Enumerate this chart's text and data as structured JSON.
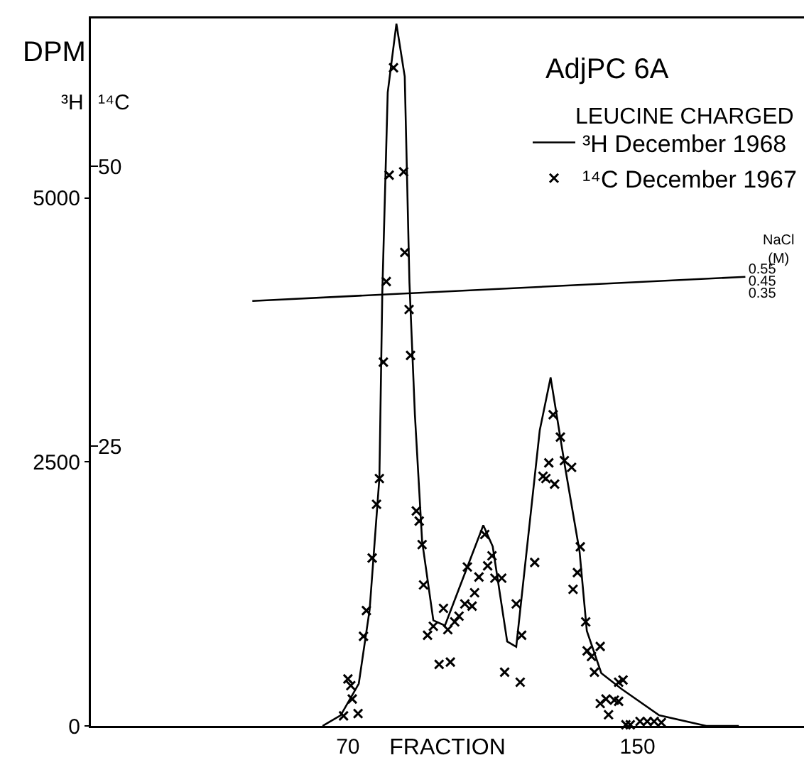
{
  "chart_data": {
    "type": "line",
    "title": "AdjPC 6A",
    "subtitle": "LEUCINE CHARGED",
    "xlabel": "FRACTION",
    "ylabel": "³H",
    "y2label": "¹⁴C",
    "y3label": "NaCl (M)",
    "annotations": [
      "DPM"
    ],
    "xlim": [
      -1,
      196
    ],
    "xticks": [
      70,
      150
    ],
    "ylim": [
      0,
      6700
    ],
    "yticks": [
      0,
      2500,
      5000
    ],
    "y2lim": [
      0,
      63.2
    ],
    "y2ticks": [
      25,
      50
    ],
    "y3lim": [
      -3.24,
      2.62
    ],
    "y3ticks": [
      0.35,
      0.45,
      0.55
    ],
    "grid": false,
    "legend": "top right",
    "series": [
      {
        "name": "³H December 1968",
        "color": "#000000",
        "line_style": "solid",
        "marker": "none",
        "x": [
          63,
          68,
          73,
          76,
          78.7,
          79.5,
          81,
          83.4,
          85.7,
          87,
          88.5,
          90.5,
          93.6,
          96.8,
          100.7,
          107.4,
          110,
          114,
          116.5,
          123,
          126,
          130,
          134,
          136,
          140,
          145.6,
          156,
          169,
          178
        ],
        "values": [
          0,
          100,
          400,
          1100,
          2350,
          4100,
          6000,
          6650,
          6150,
          4200,
          2950,
          1750,
          1000,
          950,
          1300,
          1900,
          1700,
          800,
          750,
          2800,
          3300,
          2450,
          1650,
          900,
          500,
          350,
          100,
          0,
          0
        ]
      },
      {
        "name": "¹⁴C December 1967",
        "type": "scatter",
        "axis": "y2",
        "color": "#000000",
        "marker": "cross",
        "x": [
          68.8,
          70,
          70.8,
          71.2,
          72.8,
          74.3,
          75.1,
          76.7,
          77.9,
          78.7,
          79.8,
          80.6,
          81.4,
          82.6,
          85.4,
          85.7,
          86.9,
          87.3,
          88.9,
          89.7,
          90.5,
          90.9,
          92,
          93.6,
          95.2,
          96.4,
          97.6,
          98.3,
          99.5,
          100.7,
          102.3,
          103,
          104.3,
          105,
          106.2,
          107.8,
          108.6,
          109.8,
          110.6,
          112.5,
          113.3,
          116.5,
          117.6,
          118,
          121.6,
          123.9,
          124.7,
          125.5,
          126.7,
          127.1,
          128.7,
          129.8,
          131.8,
          132.2,
          133.4,
          134.2,
          135.7,
          136.1,
          137.3,
          138.1,
          139.7,
          139.7,
          141.3,
          142,
          143.6,
          144.8,
          144.8,
          146,
          146.8,
          148,
          150.7,
          152.7,
          154.6,
          156.6
        ],
        "values": [
          0.9,
          4.2,
          3.6,
          2.4,
          1.1,
          8.0,
          10.3,
          15.0,
          19.8,
          22.1,
          32.5,
          39.7,
          49.2,
          58.8,
          49.5,
          42.3,
          37.2,
          33.1,
          19.2,
          18.3,
          16.2,
          12.6,
          8.1,
          8.9,
          5.5,
          10.5,
          8.6,
          5.7,
          9.3,
          9.8,
          10.9,
          14.2,
          10.7,
          11.9,
          13.3,
          17.1,
          14.3,
          15.2,
          13.2,
          13.2,
          4.8,
          10.9,
          3.9,
          8.1,
          14.6,
          22.3,
          22.1,
          23.5,
          27.8,
          21.6,
          25.8,
          23.7,
          23.1,
          12.2,
          13.7,
          16.0,
          9.3,
          6.7,
          6.2,
          4.8,
          7.1,
          2.0,
          2.4,
          1.0,
          2.3,
          2.2,
          3.9,
          4.1,
          0.1,
          0.1,
          0.4,
          0.4,
          0.4,
          0.3
        ]
      },
      {
        "axis": "y3",
        "color": "#000000",
        "line_style": "solid",
        "marker": "none",
        "x": [
          43.6,
          179.8
        ],
        "values": [
          0.28,
          0.48
        ]
      }
    ]
  }
}
